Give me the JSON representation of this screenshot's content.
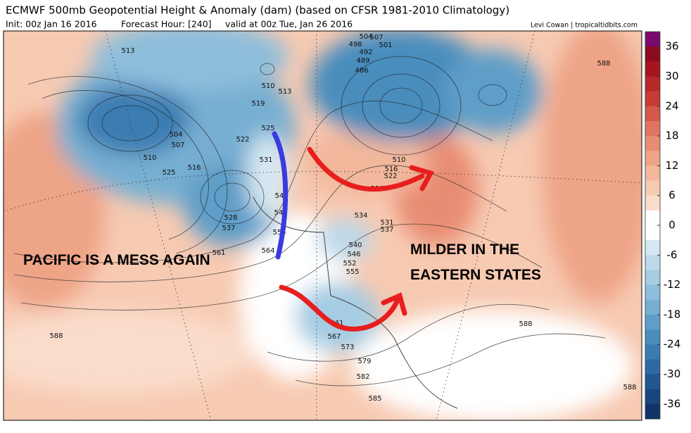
{
  "header": {
    "title": "ECMWF 500mb Geopotential Height & Anomaly (dam) (based on CFSR 1981-2010 Climatology)",
    "init": "Init: 00z Jan 16 2016",
    "forecast_hour": "Forecast Hour: [240]",
    "valid": "valid at 00z Tue, Jan 26 2016",
    "credit": "Levi Cowan | tropicaltidbits.com"
  },
  "annotations": [
    "PACIFIC IS A MESS AGAIN",
    "MILDER IN THE",
    "EASTERN STATES"
  ],
  "contour_labels": [
    513,
    504,
    507,
    510,
    525,
    516,
    522,
    528,
    537,
    561,
    564,
    525,
    531,
    519,
    510,
    513,
    504,
    507,
    498,
    501,
    492,
    489,
    486,
    510,
    516,
    522,
    528,
    534,
    531,
    537,
    540,
    546,
    552,
    555,
    543,
    549,
    555,
    561,
    567,
    573,
    579,
    582,
    585,
    588,
    588,
    588,
    588
  ],
  "colorbar": {
    "lim": [
      -39,
      39
    ],
    "ticks": [
      36,
      30,
      24,
      18,
      12,
      6,
      0,
      -6,
      -12,
      -18,
      -24,
      -30,
      -36
    ],
    "colors": [
      "#7a0a6e",
      "#8c0a1e",
      "#a8141e",
      "#b82828",
      "#c73a35",
      "#d3584a",
      "#df7560",
      "#e88d73",
      "#eea487",
      "#f3b89c",
      "#f7cab2",
      "#fadccb",
      "#ffffff",
      "#ffffff",
      "#d6e8f2",
      "#bdd9ea",
      "#a5cce3",
      "#8ebedb",
      "#77afd2",
      "#5f9ec8",
      "#4a8dbd",
      "#3a7cb2",
      "#2d6aa3",
      "#215891",
      "#18467d",
      "#10336a"
    ]
  }
}
